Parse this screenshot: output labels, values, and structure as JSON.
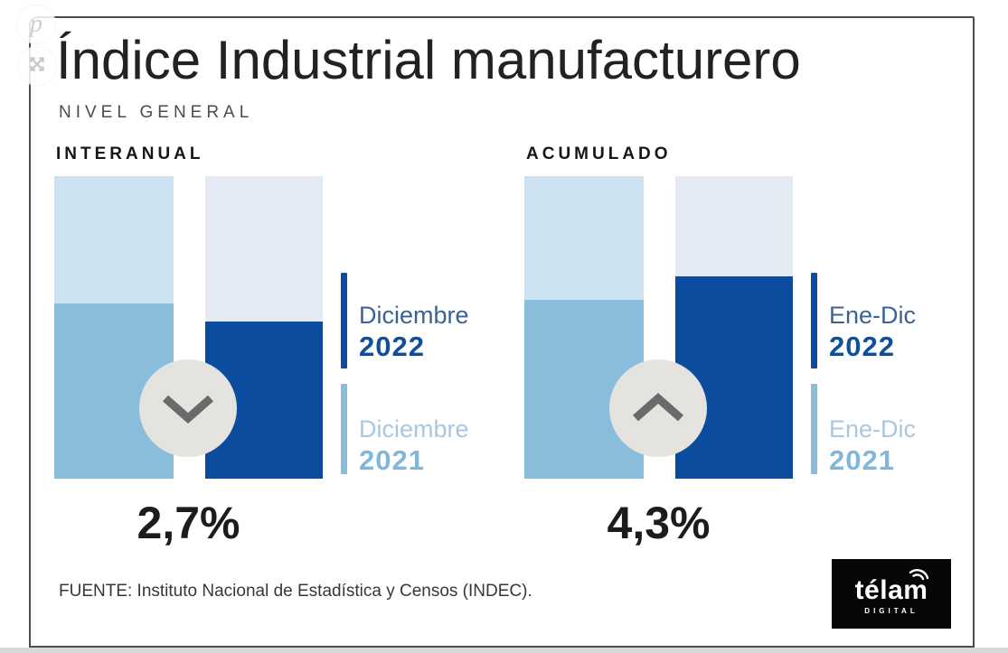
{
  "page": {
    "logo": {
      "word": "télam",
      "sub": "DIGITAL"
    },
    "overlay": {
      "pin_glyph": "p"
    }
  },
  "colors": {
    "dark_blue": "#0c4c9e",
    "light_blue": "#8abcdb",
    "track_light_blue": "#cde2f1",
    "track_pale_gray": "#e4eaf3",
    "circle_gray": "#e5e3e0",
    "chevron_gray": "#6a6a6a",
    "legend_2022_text": "#3a6395",
    "legend_2022_year": "#0e4f9e",
    "legend_2021_text": "#a8c8e2",
    "legend_2021_year": "#82b7db",
    "bottom_strip": "#d8d8d8",
    "logo_bg": "#060606"
  },
  "chart_data": {
    "type": "bar",
    "title": "Índice Industrial manufacturero",
    "subtitle": "NIVEL GENERAL",
    "source": "FUENTE: Instituto Nacional de Estadística y Censos (INDEC).",
    "unit": "percent change, year over year",
    "groups": [
      {
        "label": "INTERANUAL",
        "change_label": "2,7%",
        "change_value": -2.7,
        "direction": "down",
        "series": [
          {
            "name": "Diciembre 2021",
            "role": "baseline",
            "fill_pct": 58,
            "color": "#8abcdb",
            "track_color": "#cde2f1"
          },
          {
            "name": "Diciembre 2022",
            "role": "current",
            "fill_pct": 52,
            "color": "#0c4c9e",
            "track_color": "#e4eaf3"
          }
        ],
        "legend": [
          {
            "line1": "Diciembre",
            "line2": "2022",
            "tick_color": "#0c4c9e"
          },
          {
            "line1": "Diciembre",
            "line2": "2021",
            "tick_color": "#8abcdb"
          }
        ]
      },
      {
        "label": "ACUMULADO",
        "change_label": "4,3%",
        "change_value": 4.3,
        "direction": "up",
        "series": [
          {
            "name": "Ene-Dic 2021",
            "role": "baseline",
            "fill_pct": 59,
            "color": "#8abcdb",
            "track_color": "#cde2f1"
          },
          {
            "name": "Ene-Dic 2022",
            "role": "current",
            "fill_pct": 67,
            "color": "#0c4c9e",
            "track_color": "#e4eaf3"
          }
        ],
        "legend": [
          {
            "line1": "Ene-Dic",
            "line2": "2022",
            "tick_color": "#0c4c9e"
          },
          {
            "line1": "Ene-Dic",
            "line2": "2021",
            "tick_color": "#8abcdb"
          }
        ]
      }
    ]
  }
}
